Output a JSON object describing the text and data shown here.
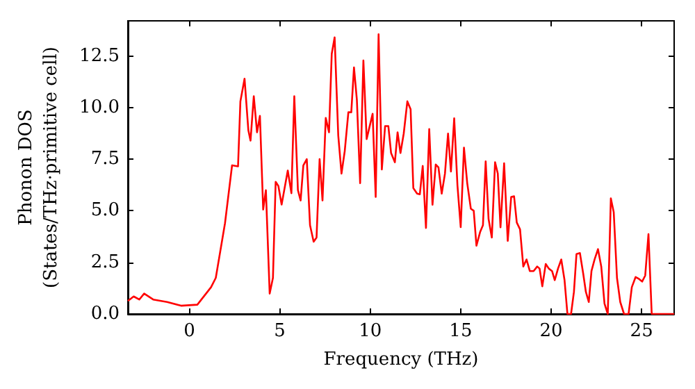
{
  "chart_data": {
    "type": "line",
    "xlabel": "Frequency (THz)",
    "ylabel": "Phonon DOS\n(States/THz·primitive cell)",
    "xlim": [
      -3.4,
      26.8
    ],
    "ylim": [
      0,
      14.2
    ],
    "xticks": [
      0,
      5,
      10,
      15,
      20,
      25
    ],
    "yticks": [
      {
        "value": 0,
        "label": "0.0"
      },
      2.5,
      {
        "value": 5,
        "label": "5.0"
      },
      7.5,
      {
        "value": 10,
        "label": "10.0"
      },
      12.5
    ],
    "grid": false,
    "marker": "none",
    "line_style": "solid",
    "series": [
      {
        "color": "#ff0000",
        "x": [
          -3.4,
          -3.08,
          -2.77,
          -2.5,
          -2.0,
          -1.23,
          -0.46,
          0.44,
          1.2,
          1.46,
          1.97,
          2.36,
          2.69,
          2.82,
          3.05,
          3.26,
          3.38,
          3.56,
          3.74,
          3.9,
          4.08,
          4.23,
          4.44,
          4.62,
          4.77,
          4.92,
          5.1,
          5.44,
          5.64,
          5.8,
          6.0,
          6.15,
          6.3,
          6.49,
          6.67,
          6.87,
          7.03,
          7.2,
          7.36,
          7.54,
          7.72,
          7.87,
          8.03,
          8.23,
          8.41,
          8.59,
          8.79,
          8.95,
          9.1,
          9.26,
          9.44,
          9.62,
          9.8,
          9.95,
          10.13,
          10.3,
          10.46,
          10.64,
          10.82,
          11.0,
          11.15,
          11.36,
          11.51,
          11.67,
          11.85,
          12.05,
          12.23,
          12.38,
          12.59,
          12.74,
          12.9,
          13.08,
          13.26,
          13.44,
          13.62,
          13.77,
          13.95,
          14.13,
          14.3,
          14.46,
          14.64,
          14.82,
          15.0,
          15.18,
          15.36,
          15.56,
          15.72,
          15.87,
          16.08,
          16.23,
          16.38,
          16.54,
          16.72,
          16.9,
          17.05,
          17.2,
          17.4,
          17.6,
          17.79,
          17.95,
          18.1,
          18.28,
          18.46,
          18.64,
          18.82,
          19.03,
          19.23,
          19.36,
          19.51,
          19.7,
          19.87,
          20.05,
          20.2,
          20.38,
          20.56,
          20.74,
          20.9,
          21.1,
          21.26,
          21.4,
          21.59,
          21.77,
          21.92,
          22.08,
          22.23,
          22.4,
          22.59,
          22.77,
          22.95,
          23.13,
          23.3,
          23.46,
          23.64,
          23.82,
          24.03,
          24.28,
          24.46,
          24.67,
          24.85,
          25.03,
          25.2,
          25.38,
          25.56,
          26.8
        ],
        "values": [
          0.63,
          0.85,
          0.7,
          0.99,
          0.7,
          0.58,
          0.4,
          0.45,
          1.3,
          1.75,
          4.4,
          7.2,
          7.15,
          10.3,
          11.4,
          8.9,
          8.4,
          10.55,
          8.8,
          9.6,
          5.06,
          6.0,
          0.99,
          1.75,
          6.4,
          6.2,
          5.3,
          6.95,
          5.85,
          10.55,
          6.0,
          5.5,
          7.2,
          7.5,
          4.3,
          3.5,
          3.7,
          7.5,
          5.5,
          9.5,
          8.8,
          12.6,
          13.4,
          8.65,
          6.8,
          7.9,
          9.77,
          9.77,
          11.94,
          10.37,
          6.34,
          12.28,
          8.47,
          9.03,
          9.7,
          5.67,
          13.55,
          7.0,
          9.1,
          9.1,
          7.8,
          7.35,
          8.8,
          7.8,
          8.74,
          10.3,
          9.92,
          6.1,
          5.83,
          5.8,
          7.17,
          4.17,
          8.96,
          5.29,
          7.24,
          7.1,
          5.83,
          6.8,
          8.74,
          6.9,
          9.48,
          6.23,
          4.21,
          8.06,
          6.34,
          5.1,
          5.0,
          3.31,
          3.99,
          4.3,
          7.39,
          4.6,
          3.7,
          7.35,
          6.8,
          4.2,
          7.3,
          3.54,
          5.67,
          5.7,
          4.43,
          4.1,
          2.3,
          2.64,
          2.08,
          2.08,
          2.3,
          2.2,
          1.34,
          2.42,
          2.2,
          2.08,
          1.64,
          2.2,
          2.64,
          1.64,
          0,
          0,
          1.07,
          2.9,
          2.95,
          1.97,
          1.07,
          0.58,
          2.08,
          2.64,
          3.14,
          2.3,
          0.5,
          0,
          5.6,
          4.93,
          1.75,
          0.58,
          0,
          0,
          1.3,
          1.79,
          1.7,
          1.57,
          1.86,
          3.87,
          0,
          0
        ]
      }
    ]
  }
}
